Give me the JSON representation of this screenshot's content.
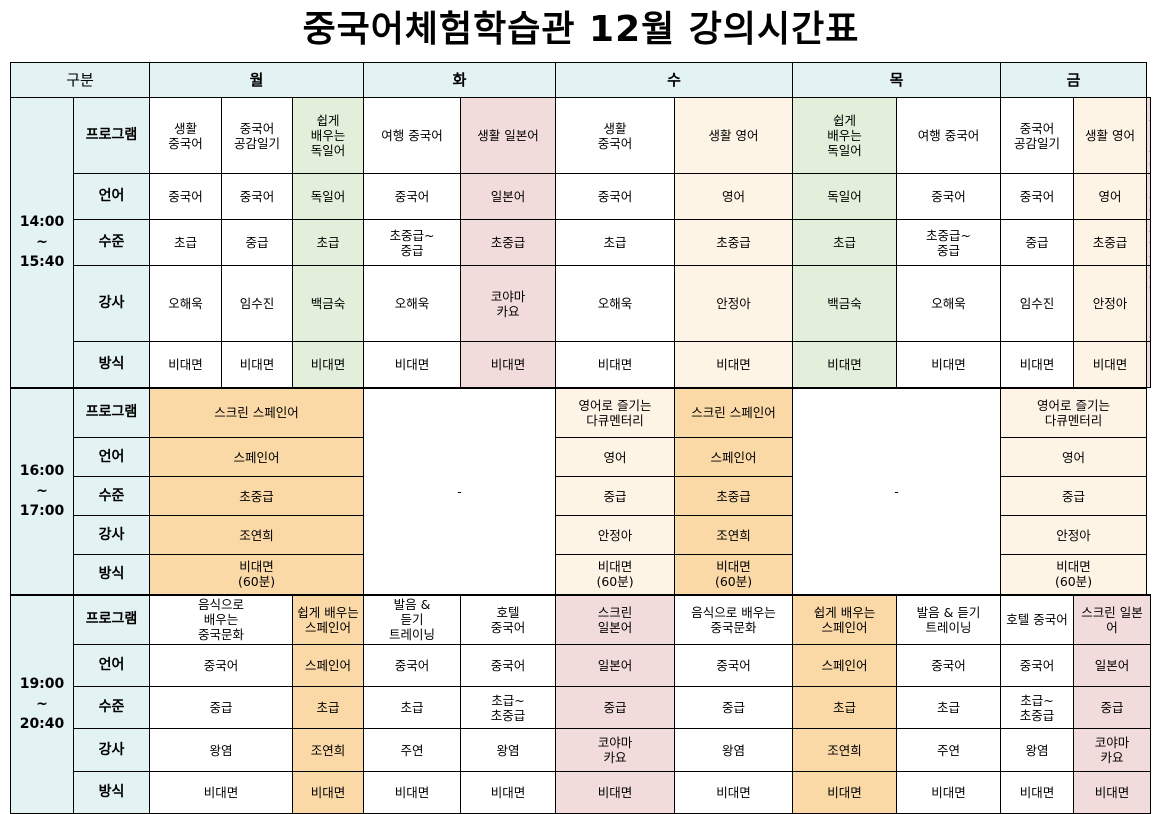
{
  "title": "중국어체험학습관 12월 강의시간표",
  "header": {
    "gubun": "구분",
    "days": [
      "월",
      "화",
      "수",
      "목",
      "금"
    ]
  },
  "labels": {
    "program": "프로그램",
    "language": "언어",
    "level": "수준",
    "teacher": "강사",
    "method": "방식"
  },
  "blocks": [
    {
      "time": "14:00\n~\n15:40",
      "cells": {
        "program": [
          "생활\n중국어",
          "중국어\n공감일기",
          "쉽게\n배우는\n독일어",
          "여행 중국어",
          "생활 일본어",
          "생활\n중국어",
          "생활 영어",
          "쉽게\n배우는\n독일어",
          "여행 중국어",
          "중국어\n공감일기",
          "생활 영어",
          "생활\n일본어"
        ],
        "language": [
          "중국어",
          "중국어",
          "독일어",
          "중국어",
          "일본어",
          "중국어",
          "영어",
          "독일어",
          "중국어",
          "중국어",
          "영어",
          "일본어"
        ],
        "level": [
          "초급",
          "중급",
          "초급",
          "초중급~\n중급",
          "초중급",
          "초급",
          "초중급",
          "초급",
          "초중급~\n중급",
          "중급",
          "초중급",
          "초중급"
        ],
        "teacher": [
          "오해욱",
          "임수진",
          "백금숙",
          "오해욱",
          "코야마\n카요",
          "오해욱",
          "안정아",
          "백금숙",
          "오해욱",
          "임수진",
          "안정아",
          "코야마\n카요"
        ],
        "method": [
          "비대면",
          "비대면",
          "비대면",
          "비대면",
          "비대면",
          "비대면",
          "비대면",
          "비대면",
          "비대면",
          "비대면",
          "비대면",
          "비대면"
        ]
      }
    },
    {
      "time": "16:00\n~\n17:00",
      "empty_tue": "-",
      "empty_thu": "-",
      "cells": {
        "program": [
          "스크린 스페인어",
          "영어로 즐기는\n다큐멘터리",
          "스크린 스페인어",
          "영어로 즐기는\n다큐멘터리"
        ],
        "language": [
          "스페인어",
          "영어",
          "스페인어",
          "영어"
        ],
        "level": [
          "초중급",
          "중급",
          "초중급",
          "중급"
        ],
        "teacher": [
          "조연희",
          "안정아",
          "조연희",
          "안정아"
        ],
        "method": [
          "비대면\n(60분)",
          "비대면\n(60분)",
          "비대면\n(60분)",
          "비대면\n(60분)"
        ]
      }
    },
    {
      "time": "19:00\n~\n20:40",
      "cells": {
        "program": [
          "음식으로\n배우는\n중국문화",
          "쉽게 배우는\n스페인어",
          "발음 &\n듣기\n트레이닝",
          "호텔\n중국어",
          "스크린\n일본어",
          "음식으로 배우는\n중국문화",
          "쉽게 배우는\n스페인어",
          "발음 & 듣기\n트레이닝",
          "호텔 중국어",
          "스크린 일본어"
        ],
        "language": [
          "중국어",
          "스페인어",
          "중국어",
          "중국어",
          "일본어",
          "중국어",
          "스페인어",
          "중국어",
          "중국어",
          "일본어"
        ],
        "level": [
          "중급",
          "초급",
          "초급",
          "초급~\n초중급",
          "중급",
          "중급",
          "초급",
          "초급",
          "초급~\n초중급",
          "중급"
        ],
        "teacher": [
          "왕염",
          "조연희",
          "주연",
          "왕염",
          "코야마\n카요",
          "왕염",
          "조연희",
          "주연",
          "왕염",
          "코야마\n카요"
        ],
        "method": [
          "비대면",
          "비대면",
          "비대면",
          "비대면",
          "비대면",
          "비대면",
          "비대면",
          "비대면",
          "비대면",
          "비대면"
        ]
      }
    }
  ],
  "colors": {
    "header_bg": "#e3f2f2",
    "german_green": "#e2efda",
    "japanese_pink": "#f2dcdb",
    "english_cream": "#fdf4e6",
    "spanish_orange": "#fad9a7"
  }
}
